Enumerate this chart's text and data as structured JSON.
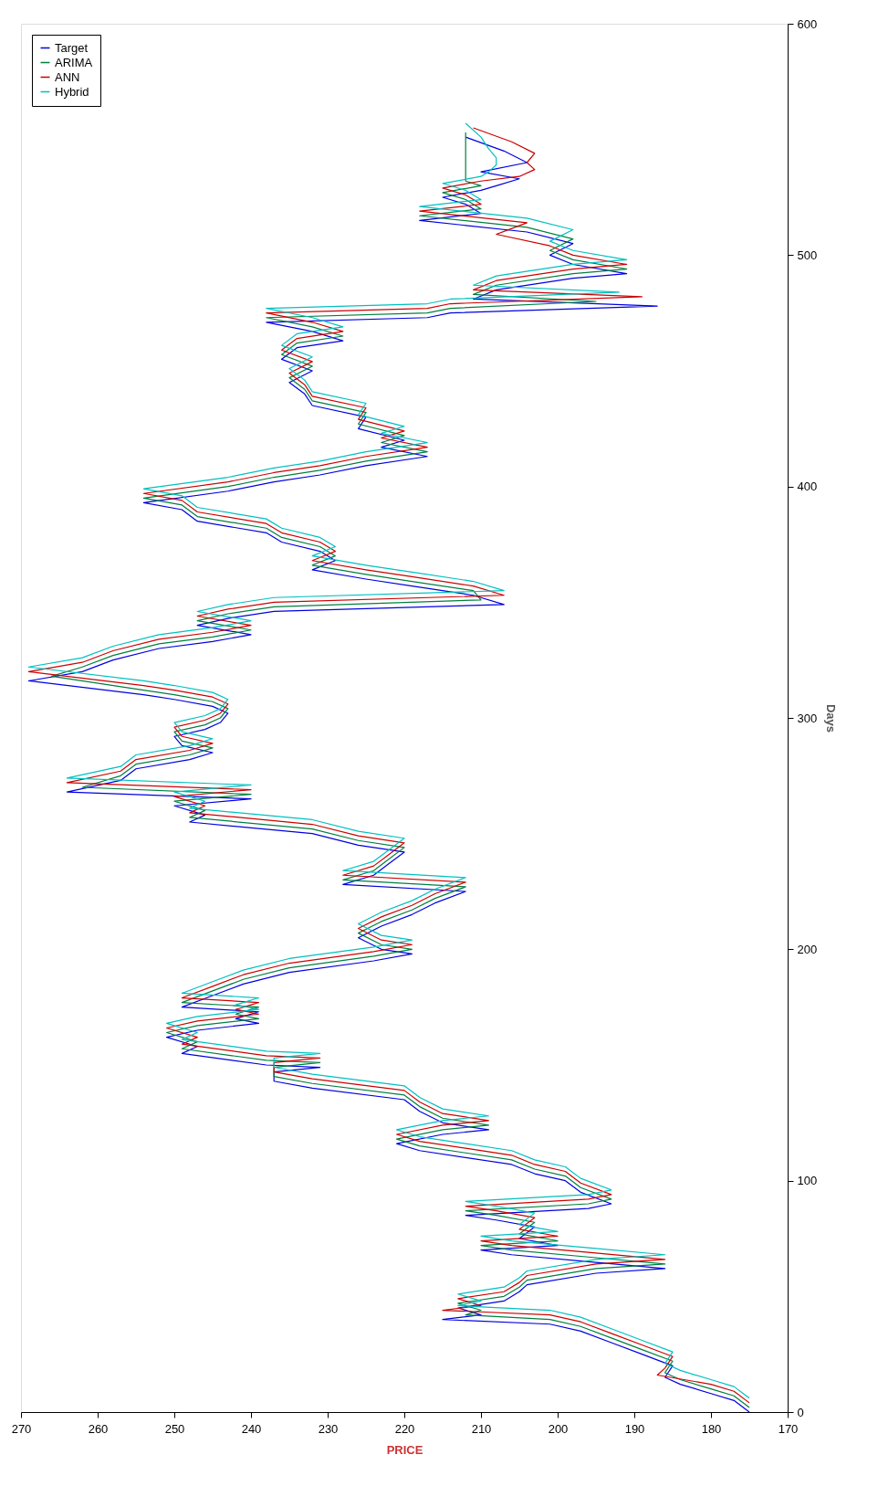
{
  "chart_data": {
    "type": "line",
    "xlabel": "PRICE",
    "ylabel": "Days",
    "xlim": [
      270,
      170
    ],
    "xticks": [
      270,
      260,
      250,
      240,
      230,
      220,
      210,
      200,
      190,
      180,
      170
    ],
    "ylim": [
      0,
      600
    ],
    "yticks": [
      0,
      100,
      200,
      300,
      400,
      500,
      600
    ],
    "legend": "top left",
    "series": [
      {
        "name": "Target",
        "color": "#0000e0",
        "x": [
          175,
          177,
          180,
          184,
          186,
          185,
          189,
          193,
          197,
          201,
          215,
          210,
          213,
          207,
          205,
          204,
          195,
          186,
          196,
          206,
          210,
          200,
          205,
          203,
          208,
          212,
          196,
          193,
          197,
          199,
          203,
          206,
          212,
          218,
          221,
          215,
          209,
          215,
          218,
          220,
          232,
          237,
          237,
          231,
          238,
          249,
          247,
          251,
          247,
          239,
          242,
          239,
          249,
          245,
          241,
          235,
          224,
          219,
          223,
          226,
          223,
          219,
          216,
          212,
          228,
          224,
          222,
          220,
          226,
          232,
          248,
          246,
          250,
          240,
          264,
          257,
          255,
          248,
          245,
          249,
          250,
          246,
          244,
          243,
          245,
          250,
          254,
          269,
          262,
          258,
          252,
          245,
          240,
          247,
          243,
          237,
          207,
          211,
          219,
          225,
          232,
          229,
          231,
          236,
          238,
          247,
          249,
          254,
          243,
          237,
          231,
          225,
          217,
          223,
          220,
          226,
          225,
          232,
          233,
          235,
          232,
          236,
          234,
          228,
          232,
          238,
          217,
          214,
          187,
          211,
          208,
          198,
          191,
          198,
          201,
          198,
          204,
          218,
          210,
          212,
          215,
          210,
          208,
          205,
          210,
          204,
          207,
          212
        ],
        "values": [
          0,
          5,
          8,
          12,
          15,
          20,
          25,
          30,
          35,
          38,
          40,
          42,
          45,
          48,
          52,
          55,
          60,
          62,
          65,
          68,
          70,
          72,
          75,
          80,
          83,
          85,
          88,
          90,
          95,
          100,
          103,
          107,
          110,
          113,
          116,
          120,
          122,
          125,
          130,
          135,
          140,
          143,
          147,
          149,
          150,
          155,
          158,
          162,
          165,
          168,
          170,
          173,
          175,
          180,
          185,
          190,
          195,
          198,
          200,
          205,
          210,
          215,
          220,
          225,
          228,
          232,
          237,
          242,
          245,
          250,
          255,
          258,
          262,
          265,
          268,
          273,
          278,
          282,
          285,
          288,
          292,
          295,
          298,
          302,
          305,
          308,
          310,
          316,
          320,
          325,
          330,
          333,
          336,
          340,
          343,
          346,
          349,
          353,
          357,
          360,
          364,
          368,
          372,
          376,
          380,
          385,
          390,
          393,
          398,
          402,
          405,
          409,
          413,
          417,
          420,
          425,
          430,
          435,
          440,
          445,
          450,
          455,
          460,
          463,
          467,
          471,
          473,
          475,
          478,
          481,
          485,
          490,
          492,
          496,
          500,
          505,
          510,
          515,
          518,
          522,
          525,
          528,
          530,
          533,
          536,
          540,
          545,
          551
        ]
      },
      {
        "name": "ARIMA",
        "color": "#007f3f",
        "x": [
          175,
          177,
          180,
          184,
          186,
          185,
          189,
          193,
          197,
          201,
          212,
          210,
          213,
          207,
          205,
          204,
          195,
          186,
          196,
          206,
          210,
          200,
          205,
          203,
          208,
          212,
          196,
          193,
          197,
          199,
          203,
          206,
          212,
          218,
          221,
          215,
          209,
          215,
          218,
          220,
          232,
          237,
          237,
          231,
          238,
          249,
          247,
          251,
          247,
          239,
          242,
          239,
          249,
          245,
          241,
          235,
          224,
          219,
          223,
          226,
          223,
          219,
          216,
          212,
          228,
          224,
          222,
          220,
          226,
          232,
          248,
          246,
          250,
          240,
          262,
          257,
          255,
          248,
          245,
          249,
          250,
          246,
          244,
          243,
          245,
          250,
          254,
          266,
          262,
          258,
          252,
          245,
          240,
          247,
          243,
          237,
          210,
          211,
          219,
          225,
          232,
          229,
          231,
          236,
          238,
          247,
          249,
          254,
          243,
          237,
          231,
          225,
          217,
          223,
          220,
          226,
          225,
          232,
          233,
          235,
          232,
          236,
          234,
          228,
          232,
          238,
          217,
          214,
          195,
          211,
          208,
          198,
          191,
          198,
          201,
          198,
          204,
          218,
          210,
          212,
          215,
          210,
          212,
          212,
          212,
          212,
          212,
          212
        ],
        "values": [
          2,
          7,
          10,
          14,
          17,
          22,
          27,
          32,
          37,
          40,
          42,
          44,
          47,
          50,
          54,
          57,
          62,
          64,
          67,
          70,
          72,
          74,
          77,
          82,
          85,
          87,
          90,
          92,
          97,
          102,
          105,
          109,
          112,
          115,
          118,
          122,
          124,
          127,
          132,
          137,
          142,
          145,
          149,
          151,
          152,
          157,
          160,
          164,
          167,
          170,
          172,
          175,
          177,
          182,
          187,
          192,
          197,
          200,
          202,
          207,
          212,
          217,
          222,
          227,
          230,
          234,
          239,
          244,
          247,
          252,
          257,
          260,
          264,
          267,
          270,
          275,
          280,
          284,
          287,
          290,
          294,
          297,
          300,
          304,
          307,
          310,
          312,
          318,
          322,
          327,
          332,
          335,
          338,
          342,
          345,
          348,
          351,
          355,
          359,
          362,
          366,
          370,
          374,
          378,
          382,
          387,
          392,
          395,
          400,
          404,
          407,
          411,
          415,
          419,
          422,
          427,
          432,
          437,
          442,
          447,
          452,
          457,
          462,
          465,
          469,
          473,
          475,
          477,
          480,
          483,
          487,
          492,
          494,
          498,
          502,
          507,
          512,
          517,
          520,
          524,
          527,
          530,
          532,
          535,
          538,
          542,
          547,
          553
        ]
      },
      {
        "name": "ANN",
        "color": "#cc0000",
        "x": [
          175,
          177,
          180,
          187,
          186,
          185,
          189,
          193,
          197,
          201,
          215,
          210,
          213,
          207,
          205,
          204,
          195,
          186,
          196,
          206,
          210,
          200,
          205,
          203,
          208,
          212,
          196,
          193,
          197,
          199,
          203,
          206,
          212,
          218,
          221,
          215,
          209,
          215,
          218,
          220,
          232,
          237,
          237,
          231,
          238,
          249,
          247,
          251,
          247,
          239,
          242,
          239,
          249,
          245,
          241,
          235,
          224,
          219,
          223,
          226,
          223,
          219,
          216,
          212,
          228,
          224,
          222,
          220,
          226,
          232,
          248,
          246,
          250,
          240,
          264,
          257,
          255,
          248,
          245,
          249,
          250,
          246,
          244,
          243,
          245,
          250,
          254,
          269,
          262,
          258,
          252,
          245,
          240,
          247,
          243,
          237,
          207,
          211,
          219,
          225,
          232,
          229,
          231,
          236,
          238,
          247,
          249,
          254,
          243,
          237,
          231,
          225,
          217,
          223,
          220,
          226,
          225,
          232,
          233,
          235,
          232,
          236,
          234,
          228,
          232,
          238,
          217,
          214,
          189,
          211,
          208,
          198,
          191,
          198,
          201,
          208,
          204,
          218,
          210,
          212,
          215,
          210,
          205,
          203,
          204,
          203,
          206,
          211
        ],
        "values": [
          4,
          9,
          12,
          16,
          19,
          24,
          29,
          34,
          39,
          42,
          44,
          46,
          49,
          52,
          56,
          59,
          64,
          66,
          69,
          72,
          74,
          76,
          79,
          84,
          87,
          89,
          92,
          94,
          99,
          104,
          107,
          111,
          114,
          117,
          120,
          124,
          126,
          129,
          134,
          139,
          144,
          147,
          151,
          153,
          154,
          159,
          162,
          166,
          169,
          172,
          174,
          177,
          179,
          184,
          189,
          194,
          199,
          202,
          204,
          209,
          214,
          219,
          224,
          229,
          232,
          236,
          241,
          246,
          249,
          254,
          259,
          262,
          266,
          269,
          272,
          277,
          282,
          286,
          289,
          292,
          296,
          299,
          302,
          306,
          309,
          312,
          314,
          320,
          324,
          329,
          334,
          337,
          340,
          344,
          347,
          350,
          353,
          357,
          361,
          364,
          368,
          372,
          376,
          380,
          384,
          389,
          394,
          397,
          402,
          406,
          409,
          413,
          417,
          421,
          424,
          429,
          434,
          439,
          444,
          449,
          454,
          459,
          464,
          467,
          471,
          475,
          477,
          479,
          482,
          485,
          489,
          494,
          496,
          500,
          504,
          509,
          514,
          519,
          522,
          526,
          529,
          532,
          534,
          537,
          540,
          544,
          549,
          555
        ]
      },
      {
        "name": "Hybrid",
        "color": "#00c0c0",
        "x": [
          175,
          177,
          180,
          184,
          186,
          185,
          189,
          193,
          197,
          201,
          213,
          210,
          213,
          207,
          205,
          204,
          195,
          186,
          196,
          206,
          210,
          200,
          205,
          203,
          208,
          212,
          196,
          193,
          197,
          199,
          203,
          206,
          212,
          218,
          221,
          215,
          209,
          215,
          218,
          220,
          232,
          237,
          237,
          231,
          238,
          249,
          247,
          251,
          247,
          239,
          242,
          239,
          249,
          245,
          241,
          235,
          224,
          219,
          223,
          226,
          223,
          219,
          216,
          212,
          228,
          224,
          222,
          220,
          226,
          232,
          248,
          246,
          250,
          240,
          264,
          257,
          255,
          248,
          245,
          249,
          250,
          246,
          244,
          243,
          245,
          250,
          254,
          269,
          262,
          258,
          252,
          245,
          240,
          247,
          243,
          237,
          207,
          211,
          219,
          225,
          232,
          229,
          231,
          236,
          238,
          247,
          249,
          254,
          243,
          237,
          231,
          225,
          217,
          223,
          220,
          226,
          225,
          232,
          233,
          235,
          232,
          236,
          234,
          228,
          232,
          238,
          217,
          214,
          192,
          211,
          208,
          198,
          191,
          198,
          201,
          198,
          204,
          218,
          210,
          212,
          215,
          210,
          209,
          208,
          208,
          209,
          210,
          212
        ],
        "values": [
          6,
          11,
          14,
          18,
          21,
          26,
          31,
          36,
          41,
          44,
          46,
          48,
          51,
          54,
          58,
          61,
          66,
          68,
          71,
          74,
          76,
          78,
          81,
          86,
          89,
          91,
          94,
          96,
          101,
          106,
          109,
          113,
          116,
          119,
          122,
          126,
          128,
          131,
          136,
          141,
          146,
          149,
          153,
          155,
          156,
          161,
          164,
          168,
          171,
          174,
          176,
          179,
          181,
          186,
          191,
          196,
          201,
          204,
          206,
          211,
          216,
          221,
          226,
          231,
          234,
          238,
          243,
          248,
          251,
          256,
          261,
          264,
          268,
          271,
          274,
          279,
          284,
          288,
          291,
          294,
          298,
          301,
          304,
          308,
          311,
          314,
          316,
          322,
          326,
          331,
          336,
          339,
          342,
          346,
          349,
          352,
          355,
          359,
          363,
          366,
          370,
          374,
          378,
          382,
          386,
          391,
          396,
          399,
          404,
          408,
          411,
          415,
          419,
          423,
          426,
          431,
          436,
          441,
          446,
          451,
          456,
          461,
          466,
          469,
          473,
          477,
          479,
          481,
          484,
          487,
          491,
          496,
          498,
          502,
          506,
          511,
          516,
          521,
          524,
          528,
          531,
          534,
          536,
          539,
          542,
          546,
          551,
          557
        ]
      }
    ]
  }
}
